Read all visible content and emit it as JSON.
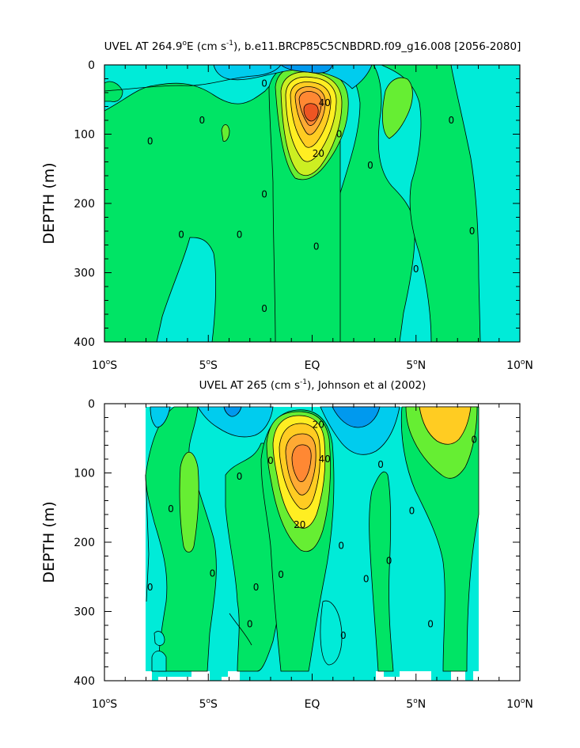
{
  "chart_data": [
    {
      "type": "contour",
      "title_prefix": "UVEL AT 264.9",
      "title_degree": "o",
      "title_after_degree": "E (cm s",
      "title_exp": "-1",
      "title_suffix": "), b.e11.BRCP85C5CNBDRD.f09_g16.008 [2056-2080]",
      "ylabel": "DEPTH (m)",
      "xlim": [
        -10,
        10
      ],
      "ylim": [
        400,
        0
      ],
      "x_ticks": [
        {
          "value": -10,
          "main": "10",
          "deg": "o",
          "hemi": "S"
        },
        {
          "value": -5,
          "main": "5",
          "deg": "o",
          "hemi": "S"
        },
        {
          "value": 0,
          "main": "EQ",
          "deg": "",
          "hemi": ""
        },
        {
          "value": 5,
          "main": "5",
          "deg": "o",
          "hemi": "N"
        },
        {
          "value": 10,
          "main": "10",
          "deg": "o",
          "hemi": "N"
        }
      ],
      "y_ticks": [
        {
          "value": 0,
          "label": "0"
        },
        {
          "value": 100,
          "label": "100"
        },
        {
          "value": 200,
          "label": "200"
        },
        {
          "value": 300,
          "label": "300"
        },
        {
          "value": 400,
          "label": "400"
        }
      ],
      "contour_labels": [
        {
          "x": -2.3,
          "y": 27,
          "text": "0"
        },
        {
          "x": -5.3,
          "y": 80,
          "text": "0"
        },
        {
          "x": -7.8,
          "y": 110,
          "text": "0"
        },
        {
          "x": -2.3,
          "y": 187,
          "text": "0"
        },
        {
          "x": -6.3,
          "y": 245,
          "text": "0"
        },
        {
          "x": -3.5,
          "y": 245,
          "text": "0"
        },
        {
          "x": 0.2,
          "y": 262,
          "text": "0"
        },
        {
          "x": -2.3,
          "y": 352,
          "text": "0"
        },
        {
          "x": 1.3,
          "y": 100,
          "text": "0"
        },
        {
          "x": 2.8,
          "y": 145,
          "text": "0"
        },
        {
          "x": 6.7,
          "y": 80,
          "text": "0"
        },
        {
          "x": 7.7,
          "y": 240,
          "text": "0"
        },
        {
          "x": 5.0,
          "y": 295,
          "text": "0"
        },
        {
          "x": 0.6,
          "y": 55,
          "text": "40"
        },
        {
          "x": 0.3,
          "y": 128,
          "text": "20"
        }
      ]
    },
    {
      "type": "contour",
      "title_prefix": "UVEL AT 265 (cm s",
      "title_exp": "-1",
      "title_suffix": "), Johnson et al (2002)",
      "ylabel": "DEPTH (m)",
      "xlim": [
        -10,
        10
      ],
      "ylim": [
        400,
        0
      ],
      "x_ticks": [
        {
          "value": -10,
          "main": "10",
          "deg": "o",
          "hemi": "S"
        },
        {
          "value": -5,
          "main": "5",
          "deg": "o",
          "hemi": "S"
        },
        {
          "value": 0,
          "main": "EQ",
          "deg": "",
          "hemi": ""
        },
        {
          "value": 5,
          "main": "5",
          "deg": "o",
          "hemi": "N"
        },
        {
          "value": 10,
          "main": "10",
          "deg": "o",
          "hemi": "N"
        }
      ],
      "y_ticks": [
        {
          "value": 0,
          "label": "0"
        },
        {
          "value": 100,
          "label": "100"
        },
        {
          "value": 200,
          "label": "200"
        },
        {
          "value": 300,
          "label": "300"
        },
        {
          "value": 400,
          "label": "400"
        }
      ],
      "contour_labels": [
        {
          "x": -7.8,
          "y": 265,
          "text": "0"
        },
        {
          "x": -6.8,
          "y": 152,
          "text": "0"
        },
        {
          "x": -3.5,
          "y": 105,
          "text": "0"
        },
        {
          "x": -2.0,
          "y": 82,
          "text": "0"
        },
        {
          "x": -4.8,
          "y": 245,
          "text": "0"
        },
        {
          "x": -2.7,
          "y": 265,
          "text": "0"
        },
        {
          "x": -3.0,
          "y": 318,
          "text": "0"
        },
        {
          "x": -1.5,
          "y": 247,
          "text": "0"
        },
        {
          "x": 1.4,
          "y": 205,
          "text": "0"
        },
        {
          "x": 1.5,
          "y": 335,
          "text": "0"
        },
        {
          "x": 2.6,
          "y": 253,
          "text": "0"
        },
        {
          "x": 3.3,
          "y": 88,
          "text": "0"
        },
        {
          "x": 3.7,
          "y": 227,
          "text": "0"
        },
        {
          "x": 4.8,
          "y": 155,
          "text": "0"
        },
        {
          "x": 5.7,
          "y": 318,
          "text": "0"
        },
        {
          "x": 7.8,
          "y": 52,
          "text": "0"
        },
        {
          "x": 0.3,
          "y": 30,
          "text": "20"
        },
        {
          "x": 0.6,
          "y": 80,
          "text": "40"
        },
        {
          "x": -0.6,
          "y": 175,
          "text": "20"
        }
      ]
    }
  ]
}
